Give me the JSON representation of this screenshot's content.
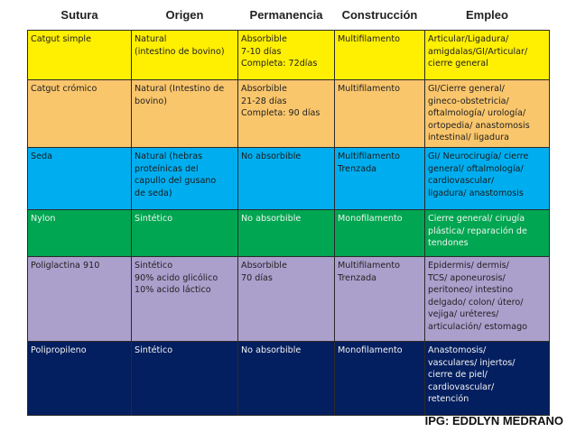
{
  "table": {
    "header": [
      "Sutura",
      "Origen",
      "Permanencia",
      "Construcción",
      "Empleo"
    ],
    "rows": [
      [
        [
          "Catgut simple"
        ],
        [
          "Natural",
          "(intestino de bovino)"
        ],
        [
          "Absorbible",
          "7-10 días",
          "Completa: 72días"
        ],
        [
          "Multifilamento"
        ],
        [
          "Articular/Ligadura/",
          "amigdalas/GI/Articular/",
          "cierre general"
        ]
      ],
      [
        [
          "Catgut crómico"
        ],
        [
          "Natural (Intestino de",
          "bovino)"
        ],
        [
          "Absorbible",
          "21-28 días",
          "Completa: 90 días"
        ],
        [
          "Multifilamento"
        ],
        [
          "GI/Cierre general/",
          "gineco-obstetricia/",
          "oftalmología/ urología/",
          "ortopedia/ anastomosis",
          "intestinal/ ligadura"
        ]
      ],
      [
        [
          "Seda"
        ],
        [
          "Natural (hebras",
          "proteínicas del",
          "capullo del gusano",
          "de seda)"
        ],
        [
          "No absorbible"
        ],
        [
          "Multifilamento",
          "Trenzada"
        ],
        [
          "GI/ Neurocirugía/ cierre",
          "general/ oftalmología/",
          "cardiovascular/",
          "ligadura/ anastomosis"
        ]
      ],
      [
        [
          "Nylon"
        ],
        [
          "Sintético"
        ],
        [
          "No absorbible"
        ],
        [
          "Monofilamento"
        ],
        [
          "Cierre general/ cirugía",
          "plástica/ reparación de",
          "tendones"
        ]
      ],
      [
        [
          "Poliglactina 910"
        ],
        [
          "Sintético",
          "90% acido glicólico",
          "10% acido láctico"
        ],
        [
          "Absorbible",
          "70 días"
        ],
        [
          "Multifilamento",
          "Trenzada"
        ],
        [
          "Epidermis/ dermis/",
          "TCS/ aponeurosis/",
          "peritoneo/ intestino",
          "delgado/ colon/ útero/",
          "vejiga/ uréteres/",
          "articulación/ estomago"
        ]
      ],
      [
        [
          "Polipropileno"
        ],
        [
          "Sintético"
        ],
        [
          "No absorbible"
        ],
        [
          "Monofilamento"
        ],
        [
          "Anastomosis/",
          "vasculares/ injertos/",
          "cierre de piel/",
          "cardiovascular/",
          "retención"
        ]
      ]
    ]
  },
  "footer": "IPG: EDDLYN MEDRANO"
}
